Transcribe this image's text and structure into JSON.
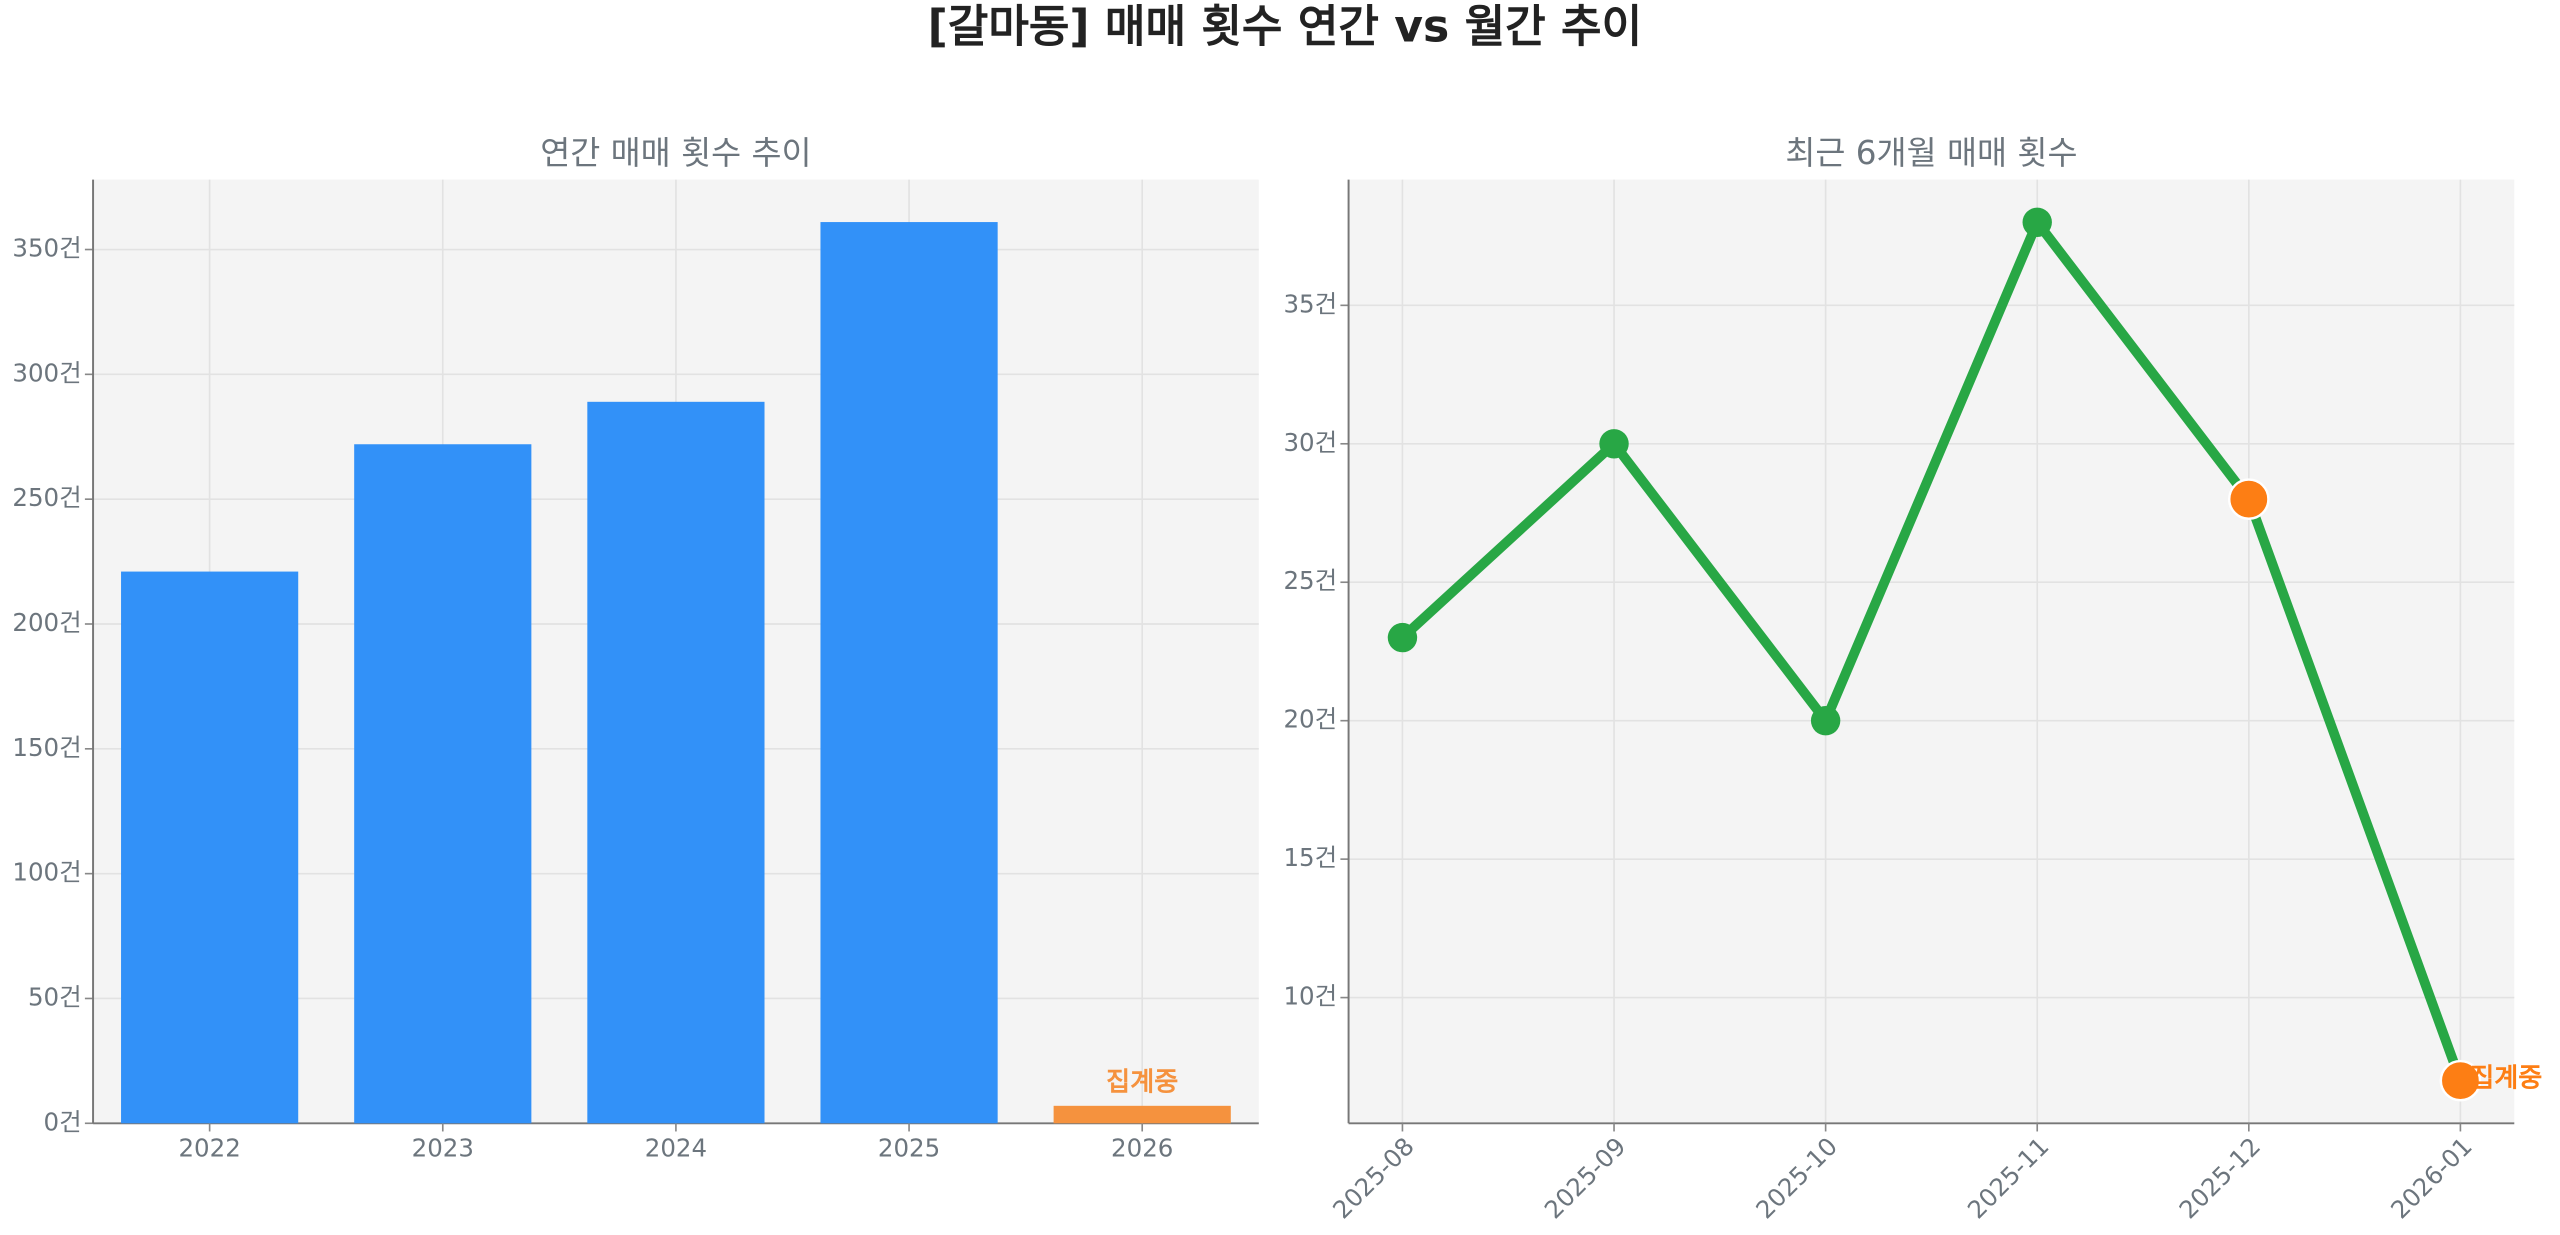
{
  "title": "[갈마동] 매매 횟수 연간 vs 월간 추이",
  "chart_data": [
    {
      "type": "bar",
      "title": "연간 매매 횟수 추이",
      "categories": [
        "2022",
        "2023",
        "2024",
        "2025",
        "2026"
      ],
      "values": [
        221,
        272,
        289,
        361,
        7
      ],
      "colors": [
        "#3291f8",
        "#3291f8",
        "#3291f8",
        "#3291f8",
        "#f5923e"
      ],
      "annotation": "집계중",
      "annotation_index": 4,
      "ylim": [
        0,
        378
      ],
      "yticks": [
        {
          "value": 0,
          "label": "0건"
        },
        {
          "value": 50,
          "label": "50건"
        },
        {
          "value": 100,
          "label": "100건"
        },
        {
          "value": 150,
          "label": "150건"
        },
        {
          "value": 200,
          "label": "200건"
        },
        {
          "value": 250,
          "label": "250건"
        },
        {
          "value": 300,
          "label": "300건"
        },
        {
          "value": 350,
          "label": "350건"
        }
      ],
      "grid": true
    },
    {
      "type": "line",
      "title": "최근 6개월 매매 횟수",
      "categories": [
        "2025-08",
        "2025-09",
        "2025-10",
        "2025-11",
        "2025-12",
        "2026-01"
      ],
      "values": [
        23,
        30,
        20,
        38,
        28,
        7
      ],
      "color": "#28a745",
      "marker_colors": [
        "#28a745",
        "#28a745",
        "#28a745",
        "#28a745",
        "#fd7e14",
        "#fd7e14"
      ],
      "annotation": "집계중",
      "annotation_index": 5,
      "ylim": [
        5.46,
        39.54
      ],
      "yticks": [
        {
          "value": 10,
          "label": "10건"
        },
        {
          "value": 15,
          "label": "15건"
        },
        {
          "value": 20,
          "label": "20건"
        },
        {
          "value": 25,
          "label": "25건"
        },
        {
          "value": 30,
          "label": "30건"
        },
        {
          "value": 35,
          "label": "35건"
        }
      ],
      "grid": true
    }
  ]
}
